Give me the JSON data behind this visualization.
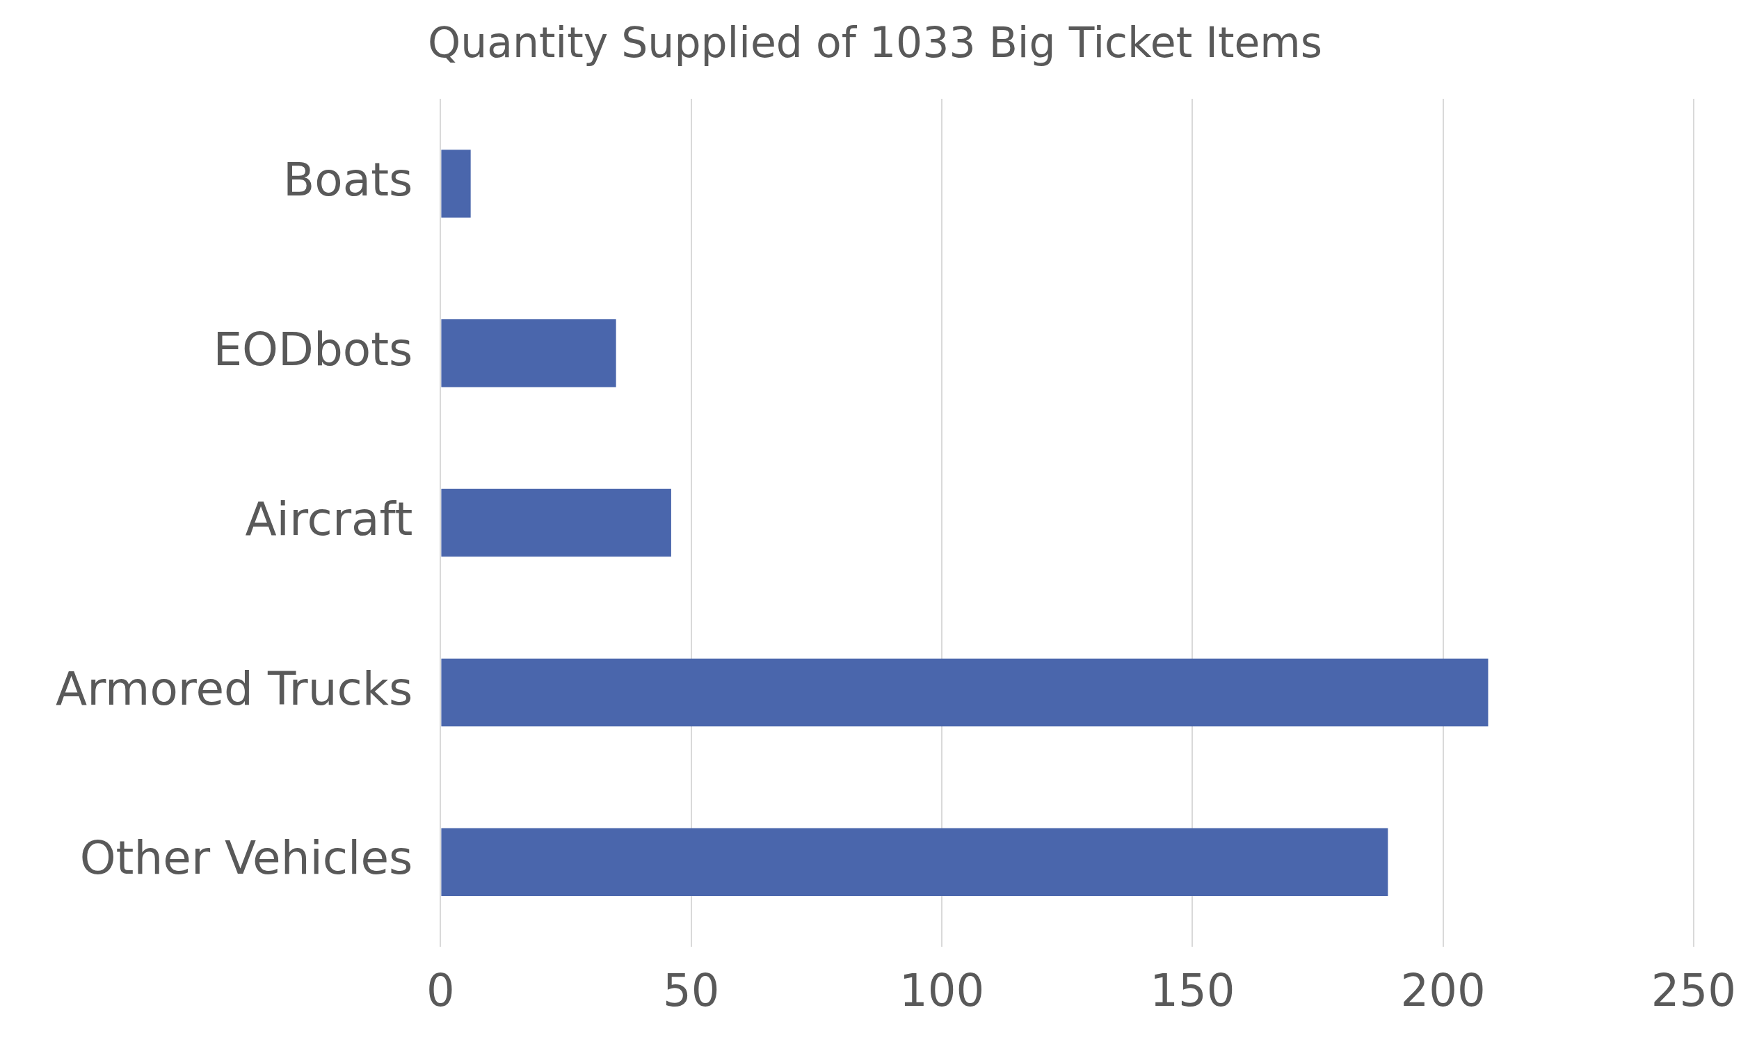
{
  "chart_data": {
    "type": "bar",
    "orientation": "horizontal",
    "title": "Quantity Supplied of 1033 Big Ticket Items",
    "categories": [
      "Boats",
      "EODbots",
      "Aircraft",
      "Armored Trucks",
      "Other Vehicles"
    ],
    "values": [
      6,
      35,
      46,
      209,
      189
    ],
    "color": "#4a66ac",
    "xlim": [
      0,
      250
    ],
    "xticks": [
      0,
      50,
      100,
      150,
      200,
      250
    ],
    "grid": "x",
    "legend": false
  }
}
